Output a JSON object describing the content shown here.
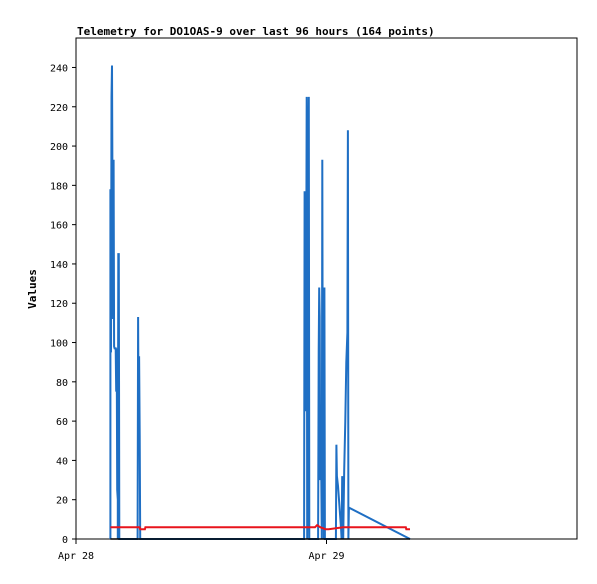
{
  "chart_data": {
    "type": "line",
    "title": "Telemetry for DO1OAS-9 over last 96 hours (164 points)",
    "xlabel": "",
    "ylabel": "Values",
    "ylim": [
      0,
      255
    ],
    "yticks": [
      0,
      20,
      40,
      60,
      80,
      100,
      120,
      140,
      160,
      180,
      200,
      220,
      240
    ],
    "xlim_hours": [
      0,
      48
    ],
    "xticks": [
      {
        "label": "Apr 28",
        "hour": 0
      },
      {
        "label": "Apr 29",
        "hour": 24
      }
    ],
    "grid": false,
    "colors": {
      "series_blue": "#1f6fc4",
      "series_red": "#e8141c",
      "series_black": "#000000",
      "axes": "#000000"
    },
    "series": [
      {
        "color": "#1f6fc4",
        "points": [
          [
            3.3,
            0
          ],
          [
            3.3,
            178
          ],
          [
            3.35,
            95
          ],
          [
            3.4,
            225
          ],
          [
            3.45,
            241
          ],
          [
            3.5,
            175
          ],
          [
            3.55,
            112
          ],
          [
            3.6,
            193
          ],
          [
            3.65,
            98
          ],
          [
            3.7,
            97
          ],
          [
            3.75,
            97
          ],
          [
            3.8,
            97
          ],
          [
            3.85,
            75
          ],
          [
            3.9,
            97
          ],
          [
            3.95,
            25
          ],
          [
            4.0,
            20
          ],
          [
            4.0,
            0
          ],
          [
            4.05,
            145
          ],
          [
            4.1,
            145
          ],
          [
            4.15,
            0
          ],
          [
            5.9,
            0
          ],
          [
            5.95,
            113
          ],
          [
            6.0,
            60
          ],
          [
            6.05,
            93
          ],
          [
            6.1,
            53
          ],
          [
            6.15,
            0
          ],
          [
            21.85,
            0
          ],
          [
            21.9,
            177
          ],
          [
            21.95,
            113
          ],
          [
            22.0,
            65
          ],
          [
            22.05,
            113
          ],
          [
            22.1,
            225
          ],
          [
            22.15,
            0
          ],
          [
            22.2,
            40
          ],
          [
            22.25,
            188
          ],
          [
            22.3,
            225
          ],
          [
            22.35,
            0
          ],
          [
            23.2,
            0
          ],
          [
            23.25,
            96
          ],
          [
            23.3,
            128
          ],
          [
            23.35,
            113
          ],
          [
            23.4,
            30
          ],
          [
            23.45,
            60
          ],
          [
            23.5,
            30
          ],
          [
            23.55,
            0
          ],
          [
            23.6,
            193
          ],
          [
            23.65,
            55
          ],
          [
            23.7,
            65
          ],
          [
            23.75,
            0
          ],
          [
            23.8,
            128
          ],
          [
            23.85,
            0
          ],
          [
            24.9,
            0
          ],
          [
            24.95,
            48
          ],
          [
            25.0,
            32
          ],
          [
            25.1,
            27
          ],
          [
            25.2,
            20
          ],
          [
            25.3,
            12
          ],
          [
            25.4,
            5
          ],
          [
            25.45,
            0
          ],
          [
            25.5,
            32
          ],
          [
            25.55,
            8
          ],
          [
            25.6,
            0
          ],
          [
            25.7,
            35
          ],
          [
            25.8,
            60
          ],
          [
            25.9,
            90
          ],
          [
            26.0,
            105
          ],
          [
            26.05,
            208
          ],
          [
            26.1,
            0
          ],
          [
            26.15,
            16
          ],
          [
            32.0,
            0
          ]
        ]
      },
      {
        "color": "#e8141c",
        "points": [
          [
            3.3,
            6
          ],
          [
            6.1,
            6
          ],
          [
            6.15,
            5
          ],
          [
            6.6,
            5
          ],
          [
            6.65,
            6
          ],
          [
            22.9,
            6
          ],
          [
            23.1,
            7
          ],
          [
            23.4,
            6
          ],
          [
            23.9,
            5
          ],
          [
            24.2,
            5
          ],
          [
            25.6,
            6
          ],
          [
            31.6,
            6
          ],
          [
            31.65,
            5
          ],
          [
            32.0,
            5
          ]
        ]
      },
      {
        "color": "#000000",
        "points": [
          [
            3.3,
            0
          ],
          [
            32.0,
            0
          ]
        ]
      }
    ]
  }
}
